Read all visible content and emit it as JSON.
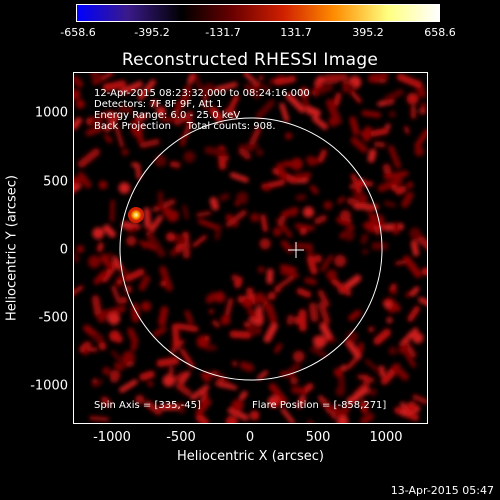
{
  "colorbar": {
    "ticks": [
      "-658.6",
      "-395.2",
      "-131.7",
      "131.7",
      "395.2",
      "658.6"
    ],
    "colors": [
      "#0000ff",
      "#3a1a8a",
      "#000000",
      "#6a0000",
      "#d02000",
      "#ff8c00",
      "#ffff80",
      "#ffffff"
    ]
  },
  "title": "Reconstructed RHESSI Image",
  "info": {
    "line1": "12-Apr-2015 08:23:32.000 to 08:24:16.000",
    "line2": "Detectors: 7F 8F 9F, Att 1",
    "line3": "Energy Range: 6.0 - 25.0 keV",
    "line4": "Back Projection     Total counts: 908."
  },
  "footer": {
    "spin_axis": "Spin Axis = [335,-45]",
    "flare_position": "Flare Position = [-858,271]"
  },
  "axes": {
    "xlabel": "Heliocentric X (arcsec)",
    "ylabel": "Heliocentric Y (arcsec)",
    "xticks": [
      "-1000",
      "-500",
      "0",
      "500",
      "1000"
    ],
    "yticks": [
      "1000",
      "500",
      "0",
      "-500",
      "-1000"
    ]
  },
  "timestamp": "13-Apr-2015 05:47"
}
